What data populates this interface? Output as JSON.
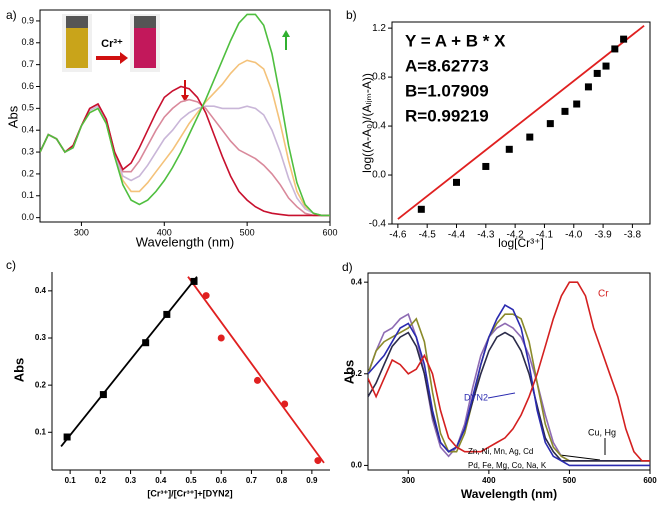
{
  "chart_data": [
    {
      "type": "line",
      "panel_label": "a)",
      "xlabel": "Wavelength (nm)",
      "ylabel": "Abs",
      "x": [
        250,
        260,
        270,
        280,
        290,
        300,
        310,
        320,
        330,
        340,
        350,
        360,
        370,
        380,
        390,
        400,
        410,
        420,
        430,
        440,
        450,
        460,
        470,
        480,
        490,
        500,
        510,
        520,
        530,
        540,
        550,
        560,
        570,
        580,
        590,
        600
      ],
      "series": [
        {
          "color": "#f4c27a",
          "values": [
            0.3,
            0.38,
            0.36,
            0.3,
            0.32,
            0.42,
            0.48,
            0.5,
            0.43,
            0.28,
            0.17,
            0.12,
            0.12,
            0.16,
            0.21,
            0.26,
            0.31,
            0.37,
            0.43,
            0.48,
            0.53,
            0.57,
            0.61,
            0.66,
            0.7,
            0.72,
            0.71,
            0.68,
            0.58,
            0.43,
            0.26,
            0.12,
            0.05,
            0.02,
            0.01,
            0.01
          ]
        },
        {
          "color": "#c9b6d8",
          "values": [
            0.3,
            0.38,
            0.36,
            0.3,
            0.32,
            0.42,
            0.49,
            0.51,
            0.44,
            0.29,
            0.19,
            0.17,
            0.19,
            0.24,
            0.3,
            0.36,
            0.4,
            0.45,
            0.48,
            0.5,
            0.51,
            0.51,
            0.5,
            0.5,
            0.5,
            0.51,
            0.5,
            0.47,
            0.4,
            0.3,
            0.18,
            0.09,
            0.04,
            0.02,
            0.01,
            0.01
          ]
        },
        {
          "color": "#d9899b",
          "values": [
            0.3,
            0.38,
            0.36,
            0.3,
            0.33,
            0.42,
            0.5,
            0.52,
            0.45,
            0.3,
            0.21,
            0.21,
            0.26,
            0.33,
            0.4,
            0.46,
            0.5,
            0.53,
            0.54,
            0.53,
            0.5,
            0.45,
            0.4,
            0.35,
            0.31,
            0.29,
            0.27,
            0.24,
            0.2,
            0.15,
            0.09,
            0.05,
            0.02,
            0.01,
            0.01,
            0.01
          ]
        },
        {
          "color": "#c8102e",
          "values": [
            0.3,
            0.38,
            0.36,
            0.3,
            0.33,
            0.42,
            0.5,
            0.52,
            0.45,
            0.3,
            0.22,
            0.25,
            0.32,
            0.4,
            0.48,
            0.55,
            0.58,
            0.6,
            0.59,
            0.55,
            0.48,
            0.38,
            0.28,
            0.19,
            0.12,
            0.08,
            0.05,
            0.03,
            0.02,
            0.015,
            0.01,
            0.01,
            0.01,
            0.01,
            0.01,
            0.01
          ]
        },
        {
          "color": "#4fbf3f",
          "values": [
            0.3,
            0.38,
            0.36,
            0.3,
            0.32,
            0.42,
            0.48,
            0.5,
            0.43,
            0.28,
            0.15,
            0.08,
            0.06,
            0.08,
            0.12,
            0.17,
            0.23,
            0.3,
            0.38,
            0.46,
            0.54,
            0.63,
            0.72,
            0.81,
            0.89,
            0.93,
            0.93,
            0.88,
            0.75,
            0.55,
            0.33,
            0.16,
            0.06,
            0.02,
            0.01,
            0.01
          ]
        }
      ],
      "xlim": [
        250,
        600
      ],
      "ylim": [
        -0.02,
        0.95
      ],
      "xticks": [
        300,
        400,
        500,
        600
      ],
      "yticks": [
        {
          "value": 0,
          "label": "0.0"
        },
        0.1,
        0.2,
        0.3,
        0.4,
        0.5,
        0.6,
        0.7,
        0.8,
        0.9
      ],
      "annotations": [
        {
          "text": "Cr³⁺",
          "color": "#000000"
        }
      ]
    },
    {
      "type": "scatter",
      "panel_label": "b)",
      "xlabel": "log[Cr³⁺]",
      "ylabel": "log((A-A₀)/(Aₗᵢₘ-A))",
      "series": [
        {
          "color": "#000000",
          "marker": "square",
          "x": [
            -4.52,
            -4.4,
            -4.3,
            -4.22,
            -4.15,
            -4.08,
            -4.03,
            -3.99,
            -3.95,
            -3.92,
            -3.89,
            -3.86,
            -3.83
          ],
          "values": [
            -0.28,
            -0.06,
            0.07,
            0.21,
            0.31,
            0.42,
            0.52,
            0.58,
            0.72,
            0.83,
            0.89,
            1.03,
            1.11
          ]
        },
        {
          "color": "#e02020",
          "marker": "line",
          "x": [
            -4.6,
            -3.76
          ],
          "values": [
            -0.36,
            1.22
          ]
        }
      ],
      "xlim": [
        -4.62,
        -3.74
      ],
      "ylim": [
        -0.4,
        1.25
      ],
      "xticks": [
        -4.6,
        -4.5,
        -4.4,
        -4.3,
        -4.2,
        -4.1,
        {
          "value": -4.0,
          "label": "-4.0"
        },
        -3.9,
        -3.8
      ],
      "yticks": [
        -0.4,
        {
          "value": 0,
          "label": "0.0"
        },
        0.4,
        0.8,
        1.2
      ],
      "annotations": [
        {
          "text": "Y = A + B * X",
          "color": "#000000"
        },
        {
          "text": "A=8.62773",
          "color": "#000000"
        },
        {
          "text": "B=1.07909",
          "color": "#000000"
        },
        {
          "text": "R=0.99219",
          "color": "#000000"
        }
      ]
    },
    {
      "type": "scatter",
      "panel_label": "c)",
      "xlabel": "[Cr³⁺]/[Cr³⁺]+[DYN2]",
      "ylabel": "Abs",
      "series": [
        {
          "color": "#000000",
          "marker": "line",
          "x": [
            0.07,
            0.52
          ],
          "values": [
            0.07,
            0.43
          ]
        },
        {
          "color": "#e02020",
          "marker": "line",
          "x": [
            0.49,
            0.94
          ],
          "values": [
            0.43,
            0.035
          ]
        },
        {
          "color": "#000000",
          "marker": "square",
          "x": [
            0.09,
            0.21,
            0.35,
            0.42,
            0.51
          ],
          "values": [
            0.09,
            0.18,
            0.29,
            0.35,
            0.42
          ]
        },
        {
          "color": "#e02020",
          "marker": "circle",
          "x": [
            0.55,
            0.6,
            0.72,
            0.81,
            0.92
          ],
          "values": [
            0.39,
            0.3,
            0.21,
            0.16,
            0.04
          ]
        }
      ],
      "xlim": [
        0.04,
        0.96
      ],
      "ylim": [
        0.02,
        0.44
      ],
      "xticks": [
        0.1,
        0.2,
        0.3,
        0.4,
        0.5,
        0.6,
        0.7,
        0.8,
        0.9
      ],
      "yticks": [
        0.1,
        0.2,
        0.3,
        0.4
      ],
      "annotations": []
    },
    {
      "type": "line",
      "panel_label": "d)",
      "xlabel": "Wavelength (nm)",
      "ylabel": "Abs",
      "x": [
        250,
        260,
        270,
        280,
        290,
        300,
        310,
        320,
        330,
        340,
        350,
        360,
        370,
        380,
        390,
        400,
        410,
        420,
        430,
        440,
        450,
        460,
        470,
        480,
        490,
        500,
        510,
        520,
        530,
        540,
        550,
        560,
        570,
        580,
        590,
        600
      ],
      "series": [
        {
          "color": "#8e6bb3",
          "values": [
            0.2,
            0.25,
            0.29,
            0.3,
            0.32,
            0.33,
            0.28,
            0.2,
            0.1,
            0.04,
            0.02,
            0.04,
            0.09,
            0.17,
            0.24,
            0.28,
            0.3,
            0.31,
            0.3,
            0.28,
            0.24,
            0.18,
            0.11,
            0.05,
            0.02,
            0.01,
            0.01,
            0.01,
            0.01,
            0.01,
            0.01,
            0.01,
            0.01,
            0.01,
            0.01,
            0.01
          ]
        },
        {
          "color": "#8a8a2a",
          "values": [
            0.2,
            0.25,
            0.27,
            0.28,
            0.29,
            0.3,
            0.32,
            0.27,
            0.16,
            0.07,
            0.03,
            0.03,
            0.07,
            0.14,
            0.22,
            0.28,
            0.31,
            0.33,
            0.33,
            0.32,
            0.27,
            0.18,
            0.09,
            0.04,
            0.02,
            0.01,
            0.01,
            0.01,
            0.01,
            0.01,
            0.01,
            0.01,
            0.01,
            0.01,
            0.01,
            0.01
          ]
        },
        {
          "color": "#2b2b4a",
          "values": [
            0.15,
            0.18,
            0.22,
            0.26,
            0.28,
            0.29,
            0.26,
            0.2,
            0.11,
            0.05,
            0.03,
            0.04,
            0.08,
            0.14,
            0.2,
            0.25,
            0.28,
            0.29,
            0.28,
            0.25,
            0.2,
            0.13,
            0.06,
            0.03,
            0.01,
            0.01,
            0.01,
            0.01,
            0.01,
            0.01,
            0.01,
            0.01,
            0.01,
            0.01,
            0.01,
            0.01
          ]
        },
        {
          "color": "#2a2ab0",
          "values": [
            0.2,
            0.22,
            0.24,
            0.27,
            0.3,
            0.31,
            0.28,
            0.22,
            0.12,
            0.05,
            0.03,
            0.04,
            0.08,
            0.15,
            0.22,
            0.28,
            0.32,
            0.35,
            0.34,
            0.3,
            0.22,
            0.12,
            0.05,
            0.02,
            0.01,
            0,
            0,
            0,
            0,
            0,
            0,
            0,
            0,
            0,
            0,
            0
          ]
        },
        {
          "color": "#d42020",
          "values": [
            0.19,
            0.15,
            0.19,
            0.23,
            0.22,
            0.2,
            0.21,
            0.24,
            0.2,
            0.12,
            0.06,
            0.04,
            0.03,
            0.03,
            0.03,
            0.04,
            0.05,
            0.06,
            0.08,
            0.11,
            0.15,
            0.2,
            0.26,
            0.32,
            0.37,
            0.4,
            0.4,
            0.37,
            0.3,
            0.25,
            0.2,
            0.15,
            0.08,
            0.03,
            0.01,
            0.01
          ]
        }
      ],
      "xlim": [
        250,
        600
      ],
      "ylim": [
        -0.01,
        0.42
      ],
      "xticks": [
        300,
        400,
        500,
        600
      ],
      "yticks": [
        {
          "value": 0,
          "label": "0.0"
        },
        0.2,
        0.4
      ],
      "annotations": [
        {
          "text": "Cr",
          "color": "#d42020"
        },
        {
          "text": "DYN2",
          "color": "#2a2ab0"
        },
        {
          "text": "Cu, Hg",
          "color": "#000000"
        },
        {
          "text": "Zn, Ni, Mn, Ag, Cd",
          "color": "#000000"
        },
        {
          "text": "Pd, Fe, Mg, Co, Na, K",
          "color": "#000000"
        }
      ]
    }
  ]
}
